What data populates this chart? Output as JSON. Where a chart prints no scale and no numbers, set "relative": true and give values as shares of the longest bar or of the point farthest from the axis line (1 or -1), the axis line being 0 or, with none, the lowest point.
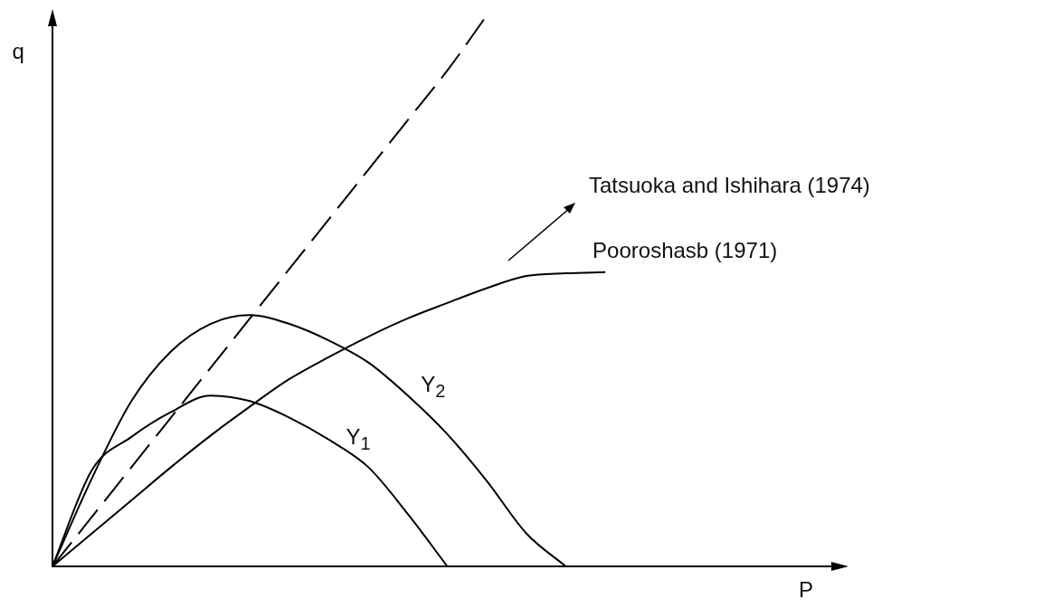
{
  "chart_data": {
    "type": "line",
    "relative": true,
    "xlabel": "P",
    "ylabel": "q",
    "tick_labels": false,
    "grid": false,
    "legend": false,
    "marker": "none",
    "annotations": [
      "Tatsuoka and Ishihara (1974)"
    ],
    "categories": [
      null,
      null,
      null,
      null,
      null,
      null,
      null,
      null,
      null,
      null,
      null,
      null,
      null,
      null,
      null,
      null,
      null,
      null,
      null,
      null,
      null
    ],
    "series": [
      {
        "color": "#000000",
        "line_style": "dashed",
        "values": [
          0,
          0.09,
          0.18,
          0.27,
          0.36,
          0.45,
          0.54,
          0.63,
          0.72,
          0.81,
          0.9,
          1.0,
          null,
          null,
          null,
          null,
          null,
          null,
          null,
          null,
          null
        ]
      },
      {
        "name": "Y$_{2}$",
        "color": "#000000",
        "values": [
          0,
          0.16,
          0.3,
          0.39,
          0.44,
          0.456,
          0.44,
          0.41,
          0.37,
          0.31,
          0.24,
          0.155,
          0.06,
          0,
          null,
          null,
          null,
          null,
          null,
          null,
          null
        ]
      },
      {
        "name": "Y$_{1}$",
        "color": "#000000",
        "values": [
          0,
          0.175,
          0.235,
          0.28,
          0.31,
          0.3,
          0.27,
          0.23,
          0.18,
          0.095,
          0,
          null,
          null,
          null,
          null,
          null,
          null,
          null,
          null,
          null,
          null
        ]
      },
      {
        "name": "Pooroshasb (1971)",
        "color": "#000000",
        "values": [
          0,
          0.06,
          0.12,
          0.18,
          0.237,
          0.29,
          0.34,
          0.38,
          0.417,
          0.45,
          0.478,
          0.505,
          0.527,
          0.532,
          0.534,
          null,
          null,
          null,
          null,
          null,
          null
        ]
      }
    ]
  }
}
